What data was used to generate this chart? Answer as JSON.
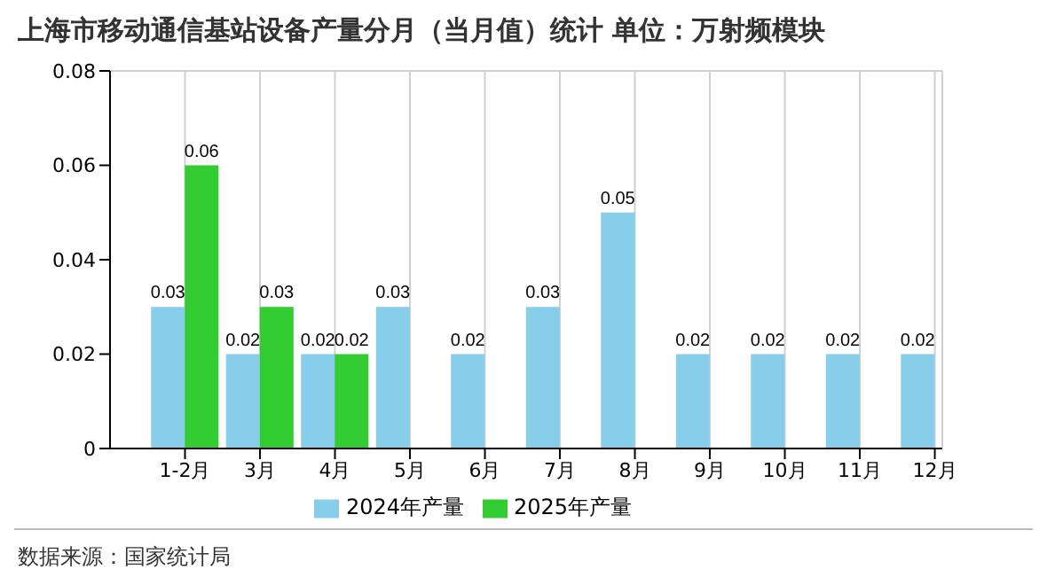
{
  "chart_data": {
    "type": "bar",
    "title": "上海市移动通信基站设备产量分月（当月值）统计 单位：万射频模块",
    "categories": [
      "1-2月",
      "3月",
      "4月",
      "5月",
      "6月",
      "7月",
      "8月",
      "9月",
      "10月",
      "11月",
      "12月"
    ],
    "series": [
      {
        "name": "2024年产量",
        "color": "#87ceeb",
        "values": [
          0.03,
          0.02,
          0.02,
          0.03,
          0.02,
          0.03,
          0.05,
          0.02,
          0.02,
          0.02,
          0.02
        ]
      },
      {
        "name": "2025年产量",
        "color": "#33cc33",
        "values": [
          0.06,
          0.03,
          0.02,
          null,
          null,
          null,
          null,
          null,
          null,
          null,
          null
        ]
      }
    ],
    "ylim": [
      0,
      0.08
    ],
    "yticks": [
      0,
      0.02,
      0.04,
      0.06,
      0.08
    ],
    "grid": true,
    "legend": "bottom",
    "data_labels": true,
    "annotations": [
      "数据来源：国家统计局"
    ]
  }
}
